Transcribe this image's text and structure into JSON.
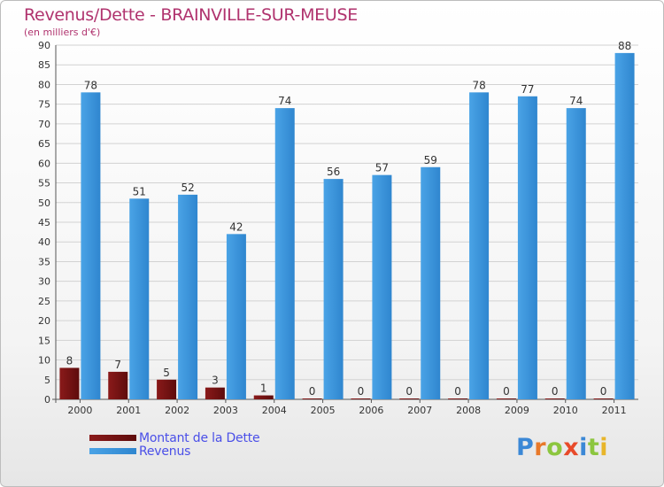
{
  "header": {
    "title": "Revenus/Dette - BRAINVILLE-SUR-MEUSE",
    "subtitle": "(en milliers d'€)"
  },
  "legend": {
    "dette_label": "Montant de la Dette",
    "revenus_label": "Revenus"
  },
  "logo": {
    "text": "Proxiti",
    "letters": [
      "P",
      "r",
      "o",
      "x",
      "i",
      "t",
      "i"
    ],
    "letter_colors": [
      "#3b88d6",
      "#e8792a",
      "#8cc63f",
      "#e84a2a",
      "#3b88d6",
      "#8cc63f",
      "#e8b52a"
    ]
  },
  "colors": {
    "title": "#b0336e",
    "dette": "#7a1212",
    "revenus": "#3d96dc",
    "legend_text": "#4a4fe8",
    "grid": "#d2d2d2"
  },
  "chart_data": {
    "type": "bar",
    "title": "Revenus/Dette - BRAINVILLE-SUR-MEUSE",
    "ylabel": "(en milliers d'€)",
    "xlabel": "",
    "ylim": [
      0,
      90
    ],
    "ytick_step": 5,
    "grid": true,
    "legend_position": "bottom-left",
    "categories": [
      "2000",
      "2001",
      "2002",
      "2003",
      "2004",
      "2005",
      "2006",
      "2007",
      "2008",
      "2009",
      "2010",
      "2011"
    ],
    "series": [
      {
        "name": "Montant de la Dette",
        "values": [
          8,
          7,
          5,
          3,
          1,
          0,
          0,
          0,
          0,
          0,
          0,
          0
        ]
      },
      {
        "name": "Revenus",
        "values": [
          78,
          51,
          52,
          42,
          74,
          56,
          57,
          59,
          78,
          77,
          74,
          88
        ]
      }
    ]
  }
}
